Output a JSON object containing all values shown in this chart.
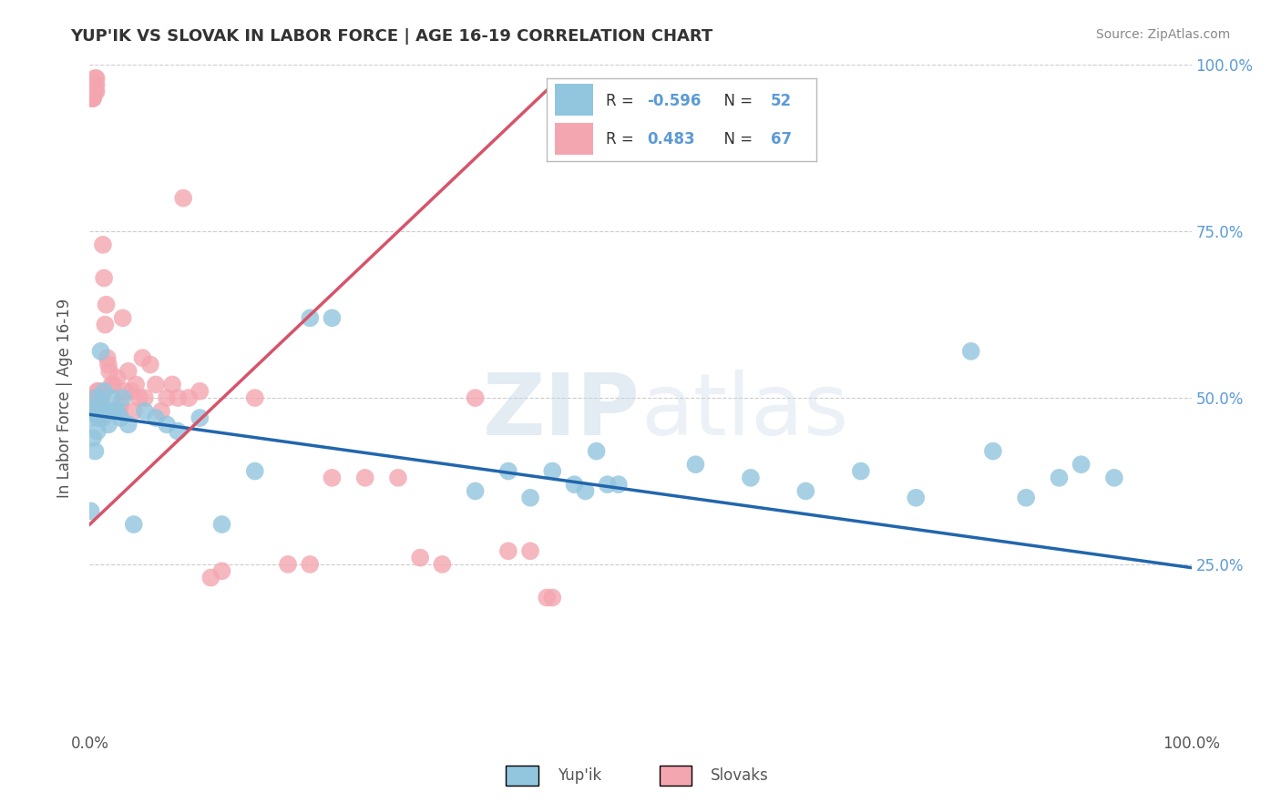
{
  "title": "YUP'IK VS SLOVAK IN LABOR FORCE | AGE 16-19 CORRELATION CHART",
  "source": "Source: ZipAtlas.com",
  "ylabel": "In Labor Force | Age 16-19",
  "xlim": [
    0,
    1.0
  ],
  "ylim": [
    0,
    1.0
  ],
  "ytick_labels_right": [
    "25.0%",
    "50.0%",
    "75.0%",
    "100.0%"
  ],
  "ytick_positions_right": [
    0.25,
    0.5,
    0.75,
    1.0
  ],
  "blue_R": "-0.596",
  "blue_N": "52",
  "pink_R": "0.483",
  "pink_N": "67",
  "blue_color": "#92c5de",
  "pink_color": "#f4a6b0",
  "blue_line_color": "#2166ac",
  "pink_line_color": "#d6546a",
  "background_color": "#ffffff",
  "grid_color": "#cccccc",
  "watermark_zip": "ZIP",
  "watermark_atlas": "atlas",
  "title_fontsize": 13,
  "legend_fontsize": 13,
  "blue_line_x0": 0.0,
  "blue_line_y0": 0.475,
  "blue_line_x1": 1.0,
  "blue_line_y1": 0.245,
  "pink_line_x0": 0.0,
  "pink_line_y0": 0.31,
  "pink_line_x1": 0.42,
  "pink_line_y1": 0.97,
  "blue_scatter_x": [
    0.001,
    0.002,
    0.003,
    0.004,
    0.005,
    0.005,
    0.006,
    0.007,
    0.008,
    0.009,
    0.01,
    0.011,
    0.012,
    0.013,
    0.015,
    0.017,
    0.02,
    0.022,
    0.025,
    0.028,
    0.03,
    0.035,
    0.04,
    0.05,
    0.06,
    0.07,
    0.08,
    0.1,
    0.12,
    0.15,
    0.2,
    0.22,
    0.35,
    0.38,
    0.4,
    0.42,
    0.44,
    0.45,
    0.46,
    0.47,
    0.48,
    0.55,
    0.6,
    0.65,
    0.7,
    0.75,
    0.8,
    0.82,
    0.85,
    0.88,
    0.9,
    0.93
  ],
  "blue_scatter_y": [
    0.33,
    0.47,
    0.44,
    0.48,
    0.42,
    0.48,
    0.5,
    0.45,
    0.47,
    0.49,
    0.57,
    0.48,
    0.47,
    0.51,
    0.48,
    0.46,
    0.5,
    0.48,
    0.48,
    0.47,
    0.5,
    0.46,
    0.31,
    0.48,
    0.47,
    0.46,
    0.45,
    0.47,
    0.31,
    0.39,
    0.62,
    0.62,
    0.36,
    0.39,
    0.35,
    0.39,
    0.37,
    0.36,
    0.42,
    0.37,
    0.37,
    0.4,
    0.38,
    0.36,
    0.39,
    0.35,
    0.57,
    0.42,
    0.35,
    0.38,
    0.4,
    0.38
  ],
  "pink_scatter_x": [
    0.001,
    0.002,
    0.002,
    0.003,
    0.003,
    0.004,
    0.005,
    0.005,
    0.006,
    0.006,
    0.007,
    0.007,
    0.008,
    0.008,
    0.009,
    0.01,
    0.011,
    0.012,
    0.013,
    0.014,
    0.015,
    0.016,
    0.017,
    0.018,
    0.02,
    0.022,
    0.025,
    0.027,
    0.028,
    0.03,
    0.032,
    0.035,
    0.038,
    0.04,
    0.042,
    0.045,
    0.048,
    0.05,
    0.055,
    0.06,
    0.065,
    0.07,
    0.075,
    0.08,
    0.085,
    0.09,
    0.1,
    0.11,
    0.12,
    0.15,
    0.18,
    0.2,
    0.22,
    0.25,
    0.28,
    0.3,
    0.32,
    0.35,
    0.38,
    0.4,
    0.415,
    0.42,
    0.002,
    0.003,
    0.004,
    0.005,
    0.006
  ],
  "pink_scatter_y": [
    0.48,
    0.5,
    0.95,
    0.95,
    0.97,
    0.97,
    0.97,
    0.98,
    0.97,
    0.98,
    0.48,
    0.51,
    0.5,
    0.51,
    0.47,
    0.5,
    0.5,
    0.73,
    0.68,
    0.61,
    0.64,
    0.56,
    0.55,
    0.54,
    0.52,
    0.52,
    0.53,
    0.48,
    0.49,
    0.62,
    0.51,
    0.54,
    0.51,
    0.48,
    0.52,
    0.5,
    0.56,
    0.5,
    0.55,
    0.52,
    0.48,
    0.5,
    0.52,
    0.5,
    0.8,
    0.5,
    0.51,
    0.23,
    0.24,
    0.5,
    0.25,
    0.25,
    0.38,
    0.38,
    0.38,
    0.26,
    0.25,
    0.5,
    0.27,
    0.27,
    0.2,
    0.2,
    0.95,
    0.95,
    0.96,
    0.96,
    0.96
  ]
}
